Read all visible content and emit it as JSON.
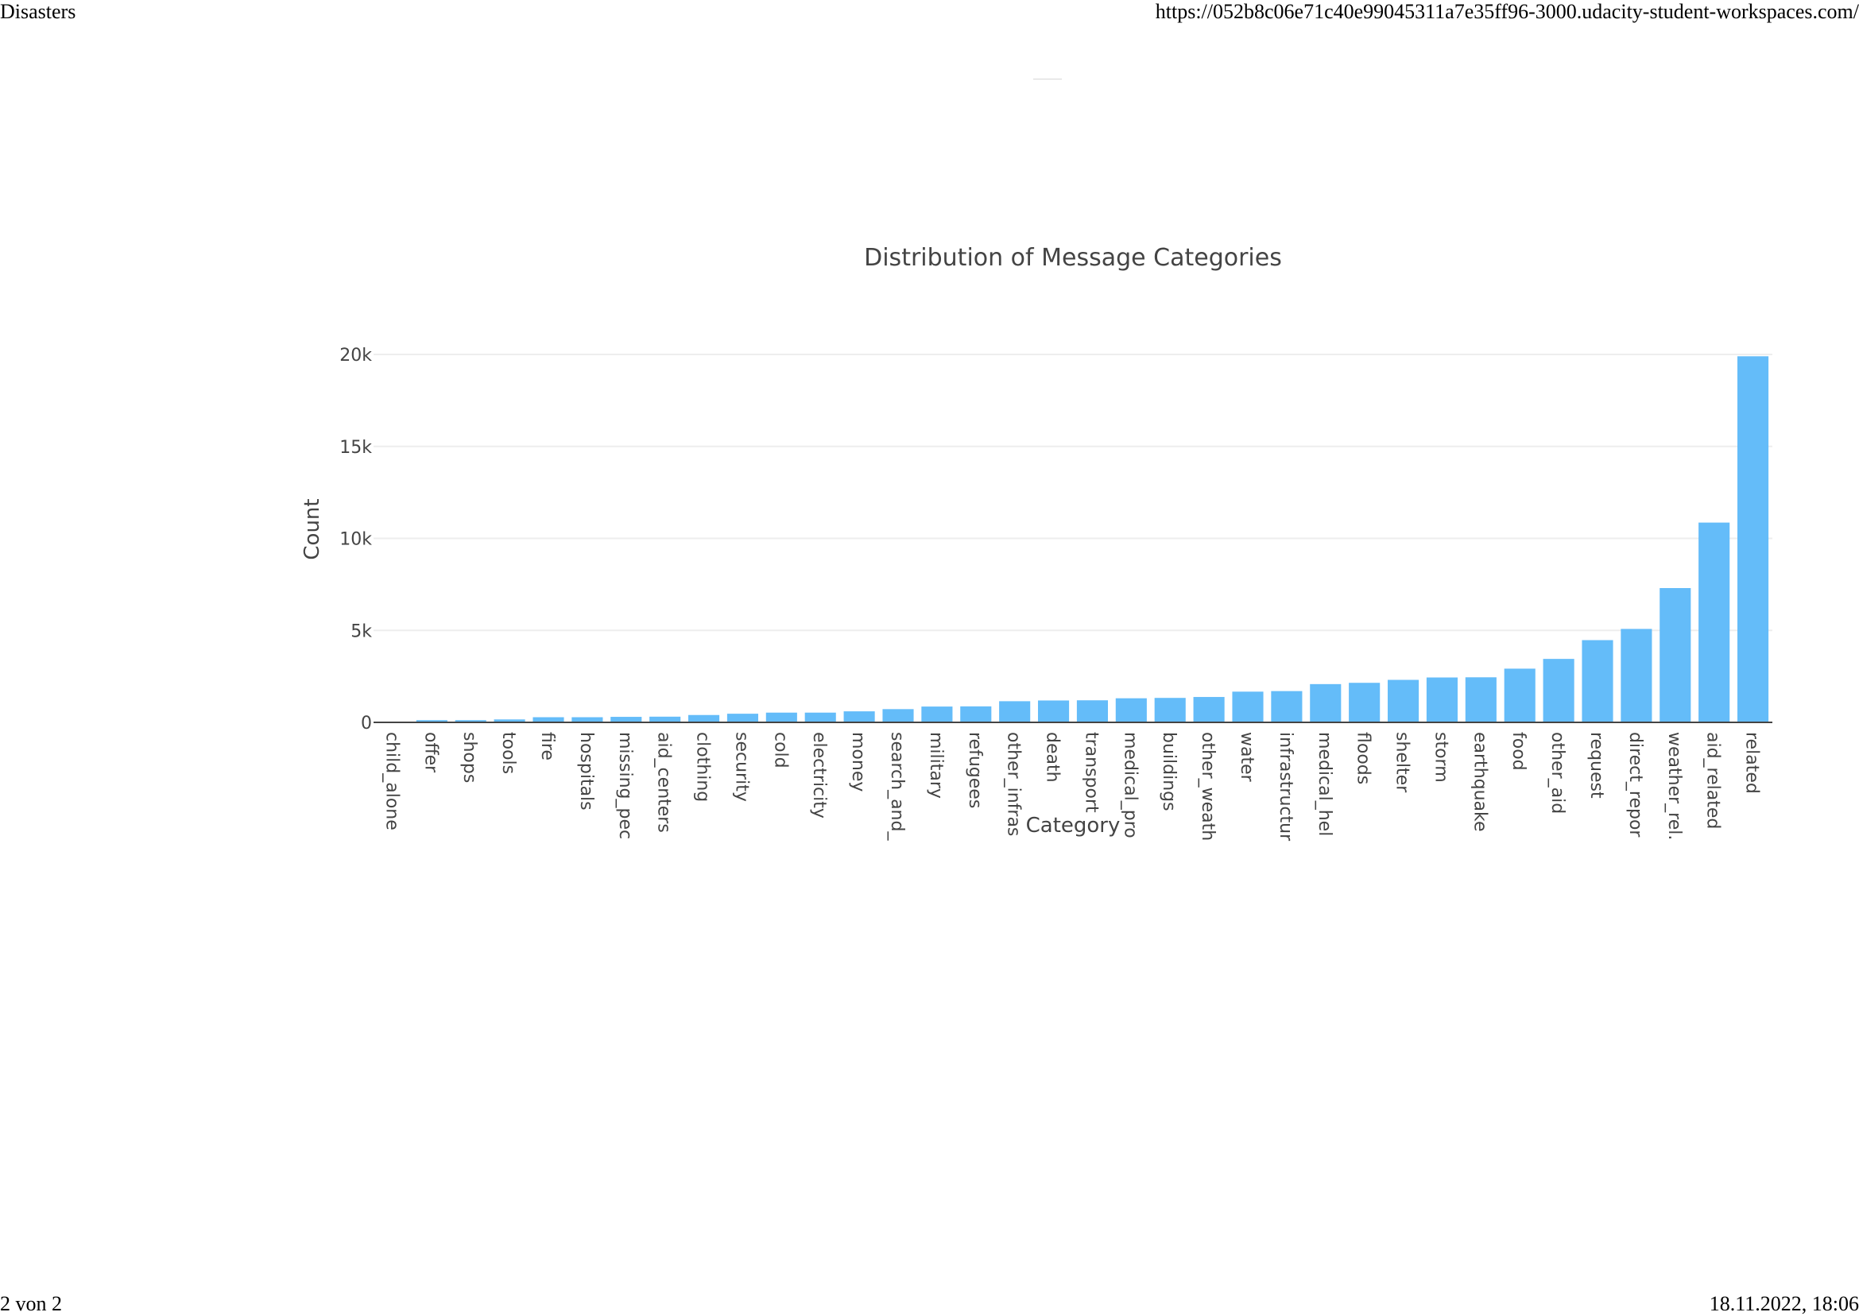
{
  "print": {
    "title": "Disasters",
    "url": "https://052b8c06e71c40e99045311a7e35ff96-3000.udacity-student-workspaces.com/",
    "page": "2 von 2",
    "datetime": "18.11.2022, 18:06"
  },
  "colors": {
    "bar": "#64bcf9",
    "grid": "#eeeeee",
    "axis_line": "#444444",
    "text": "#444444"
  },
  "chart_data": {
    "type": "bar",
    "title": "Distribution of Message Categories",
    "xlabel": "Category",
    "ylabel": "Count",
    "ylim": [
      0,
      20000
    ],
    "y_ticks": [
      0,
      5000,
      10000,
      15000,
      20000
    ],
    "y_tick_labels": [
      "0",
      "5k",
      "10k",
      "15k",
      "20k"
    ],
    "grid": true,
    "legend": "none",
    "categories": [
      "child_alone",
      "offer",
      "shops",
      "tools",
      "fire",
      "hospitals",
      "missing_pec",
      "aid_centers",
      "clothing",
      "security",
      "cold",
      "electricity",
      "money",
      "search_and_",
      "military",
      "refugees",
      "other_infras",
      "death",
      "transport",
      "medical_pro",
      "buildings",
      "other_weath",
      "water",
      "infrastructur",
      "medical_hel",
      "floods",
      "shelter",
      "storm",
      "earthquake",
      "food",
      "other_aid",
      "request",
      "direct_repor",
      "weather_rel.",
      "aid_related",
      "related"
    ],
    "values": [
      0,
      120,
      120,
      160,
      280,
      280,
      300,
      310,
      400,
      470,
      530,
      530,
      600,
      720,
      860,
      870,
      1150,
      1190,
      1200,
      1310,
      1330,
      1380,
      1670,
      1700,
      2080,
      2150,
      2310,
      2440,
      2450,
      2920,
      3450,
      4470,
      5080,
      7300,
      10860,
      19900
    ]
  }
}
